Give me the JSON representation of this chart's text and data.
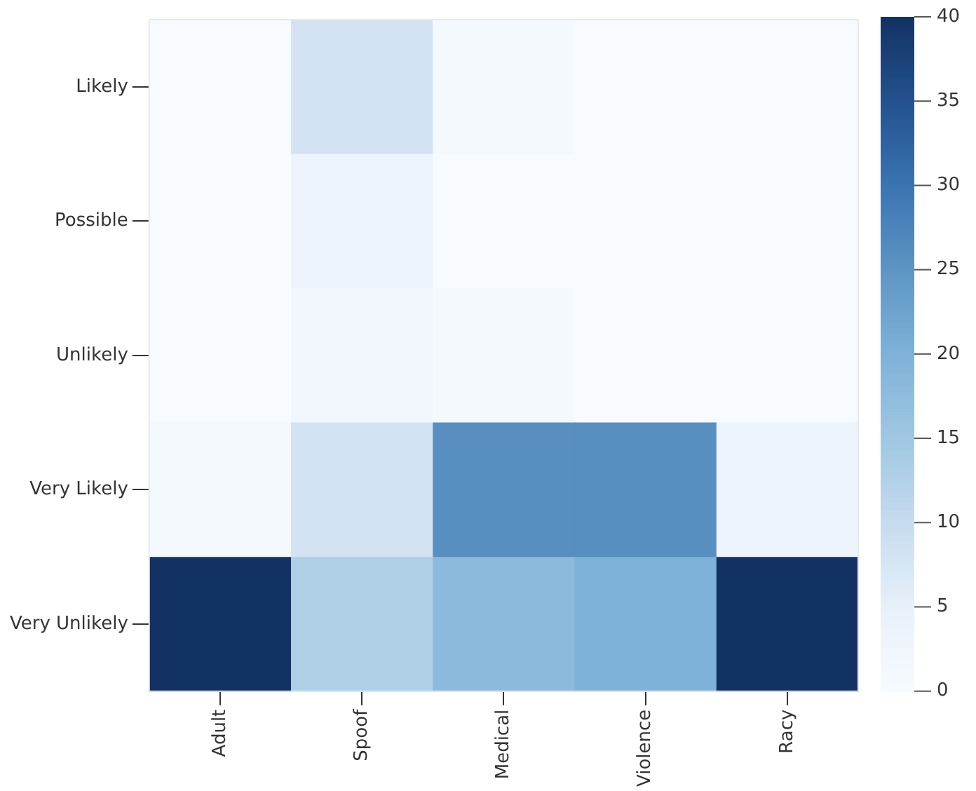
{
  "chart_data": {
    "type": "heatmap",
    "categories": [
      "Adult",
      "Spoof",
      "Medical",
      "Violence",
      "Racy"
    ],
    "y_categories": [
      "Likely",
      "Possible",
      "Unlikely",
      "Very Likely",
      "Very Unlikely"
    ],
    "cells": [
      [
        0,
        8,
        1,
        0,
        0
      ],
      [
        0,
        3,
        0,
        0,
        0
      ],
      [
        0,
        2,
        1,
        0,
        0
      ],
      [
        1,
        8,
        26,
        26,
        3
      ],
      [
        40,
        13,
        18,
        20,
        40
      ]
    ],
    "clim": [
      0,
      40
    ],
    "cticks": [
      0,
      5,
      10,
      15,
      20,
      25,
      30,
      35,
      40
    ]
  }
}
